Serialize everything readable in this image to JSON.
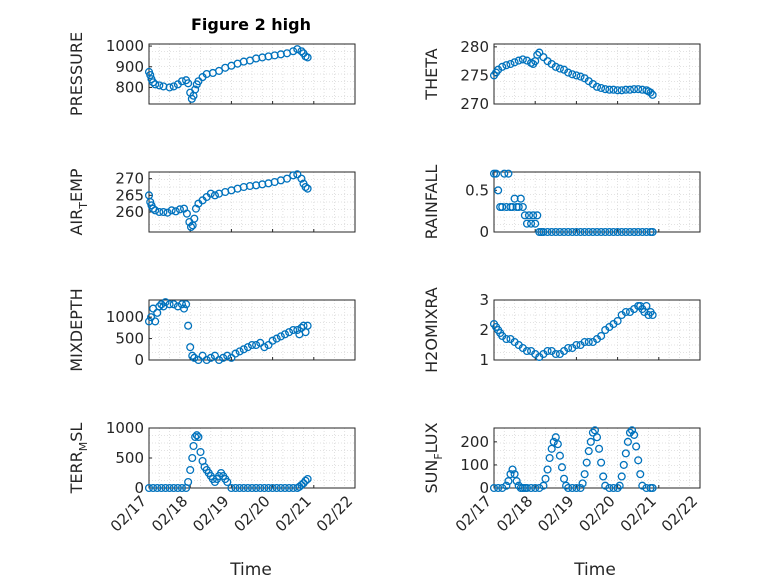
{
  "figure": {
    "title": "Figure 2 high",
    "marker_color": "#0072BD"
  },
  "chart_data": [
    {
      "id": "pressure",
      "type": "scatter",
      "ylabel": "PRESSURE",
      "ylim": [
        720,
        1010
      ],
      "yticks": [
        800,
        900,
        1000
      ],
      "ytick_labels": [
        "800",
        "900",
        "1000"
      ],
      "xlim": [
        0,
        5
      ],
      "xticks": [
        0,
        1,
        2,
        3,
        4,
        5
      ],
      "xtick_labels": [
        "02/17",
        "02/18",
        "02/19",
        "02/20",
        "02/21",
        "02/22"
      ],
      "show_xtick_labels": false,
      "x": [
        0.0,
        0.03,
        0.06,
        0.1,
        0.15,
        0.25,
        0.35,
        0.5,
        0.6,
        0.7,
        0.8,
        0.9,
        0.95,
        1.0,
        1.04,
        1.08,
        1.12,
        1.16,
        1.2,
        1.3,
        1.4,
        1.55,
        1.7,
        1.85,
        2.0,
        2.15,
        2.3,
        2.45,
        2.6,
        2.75,
        2.9,
        3.05,
        3.2,
        3.35,
        3.5,
        3.6,
        3.7,
        3.75,
        3.8,
        3.85
      ],
      "y": [
        875,
        860,
        840,
        825,
        815,
        810,
        805,
        800,
        805,
        815,
        830,
        835,
        820,
        775,
        745,
        760,
        790,
        815,
        830,
        850,
        865,
        870,
        880,
        895,
        905,
        915,
        925,
        930,
        940,
        945,
        950,
        955,
        960,
        965,
        975,
        985,
        975,
        965,
        950,
        945
      ]
    },
    {
      "id": "theta",
      "type": "scatter",
      "ylabel": "THETA",
      "ylim": [
        270,
        280.5
      ],
      "yticks": [
        270,
        275,
        280
      ],
      "ytick_labels": [
        "270",
        "275",
        "280"
      ],
      "xlim": [
        0,
        5
      ],
      "xticks": [
        0,
        1,
        2,
        3,
        4,
        5
      ],
      "xtick_labels": [
        "02/17",
        "02/18",
        "02/19",
        "02/20",
        "02/21",
        "02/22"
      ],
      "show_xtick_labels": false,
      "x": [
        0.0,
        0.05,
        0.1,
        0.2,
        0.3,
        0.4,
        0.5,
        0.6,
        0.7,
        0.8,
        0.9,
        0.95,
        1.0,
        1.05,
        1.1,
        1.2,
        1.3,
        1.4,
        1.5,
        1.6,
        1.7,
        1.8,
        1.9,
        2.0,
        2.1,
        2.2,
        2.3,
        2.4,
        2.5,
        2.6,
        2.7,
        2.8,
        2.9,
        3.0,
        3.1,
        3.2,
        3.3,
        3.4,
        3.5,
        3.6,
        3.7,
        3.75,
        3.8,
        3.85
      ],
      "y": [
        275,
        275.5,
        276,
        276.5,
        276.8,
        277,
        277.3,
        277.6,
        277.8,
        277.6,
        277.2,
        277,
        277.5,
        278.6,
        279,
        278.2,
        277.5,
        277,
        276.5,
        276.2,
        276,
        275.5,
        275.2,
        275,
        274.8,
        274.5,
        274,
        273.5,
        273,
        272.8,
        272.6,
        272.5,
        272.5,
        272.4,
        272.4,
        272.5,
        272.5,
        272.6,
        272.6,
        272.5,
        272.4,
        272.2,
        272,
        271.6
      ]
    },
    {
      "id": "air_temp",
      "type": "scatter",
      "ylabel": "AIR",
      "ylabel_sub": "T",
      "ylabel_rest": "EMP",
      "ylim": [
        254,
        272
      ],
      "yticks": [
        260,
        265,
        270
      ],
      "ytick_labels": [
        "260",
        "265",
        "270"
      ],
      "xlim": [
        0,
        5
      ],
      "xticks": [
        0,
        1,
        2,
        3,
        4,
        5
      ],
      "xtick_labels": [
        "02/17",
        "02/18",
        "02/19",
        "02/20",
        "02/21",
        "02/22"
      ],
      "show_xtick_labels": false,
      "x": [
        0.0,
        0.03,
        0.06,
        0.1,
        0.15,
        0.25,
        0.35,
        0.45,
        0.55,
        0.65,
        0.75,
        0.85,
        0.92,
        0.98,
        1.02,
        1.06,
        1.1,
        1.14,
        1.2,
        1.3,
        1.4,
        1.5,
        1.6,
        1.7,
        1.85,
        2.0,
        2.15,
        2.3,
        2.45,
        2.6,
        2.75,
        2.9,
        3.05,
        3.2,
        3.35,
        3.5,
        3.6,
        3.7,
        3.75,
        3.8,
        3.85
      ],
      "y": [
        265,
        263,
        262,
        261,
        260.5,
        260,
        260,
        259.8,
        260.5,
        260.2,
        260.8,
        261,
        259.5,
        257,
        255.5,
        256,
        258,
        261,
        262.5,
        263.5,
        264.5,
        265.5,
        265,
        265.5,
        266,
        266.5,
        267,
        267.5,
        267.8,
        268,
        268.3,
        268.6,
        269,
        269.5,
        270,
        271,
        271.3,
        270,
        268.5,
        267.5,
        267
      ]
    },
    {
      "id": "rainfall",
      "type": "scatter",
      "ylabel": "RAINFALL",
      "ylim": [
        0,
        0.72
      ],
      "yticks": [
        0,
        0.5
      ],
      "ytick_labels": [
        "0",
        "0.5"
      ],
      "xlim": [
        0,
        5
      ],
      "xticks": [
        0,
        1,
        2,
        3,
        4,
        5
      ],
      "xtick_labels": [
        "02/17",
        "02/18",
        "02/19",
        "02/20",
        "02/21",
        "02/22"
      ],
      "show_xtick_labels": false,
      "x": [
        0.0,
        0.05,
        0.1,
        0.15,
        0.2,
        0.25,
        0.3,
        0.35,
        0.4,
        0.45,
        0.5,
        0.55,
        0.6,
        0.65,
        0.7,
        0.75,
        0.8,
        0.85,
        0.9,
        0.95,
        1.0,
        1.05,
        1.1,
        1.15,
        1.2,
        1.3,
        1.4,
        1.5,
        1.6,
        1.7,
        1.8,
        1.9,
        2.0,
        2.1,
        2.2,
        2.3,
        2.4,
        2.5,
        2.6,
        2.7,
        2.8,
        2.9,
        3.0,
        3.1,
        3.2,
        3.3,
        3.4,
        3.5,
        3.6,
        3.7,
        3.8,
        3.85
      ],
      "y": [
        0.7,
        0.7,
        0.5,
        0.3,
        0.3,
        0.7,
        0.3,
        0.7,
        0.3,
        0.3,
        0.4,
        0.3,
        0.3,
        0.4,
        0.3,
        0.2,
        0.1,
        0.2,
        0.1,
        0.2,
        0.1,
        0.2,
        0.0,
        0.0,
        0.0,
        0.0,
        0.0,
        0.0,
        0.0,
        0.0,
        0.0,
        0.0,
        0.0,
        0.0,
        0.0,
        0.0,
        0.0,
        0.0,
        0.0,
        0.0,
        0.0,
        0.0,
        0.0,
        0.0,
        0.0,
        0.0,
        0.0,
        0.0,
        0.0,
        0.0,
        0.0,
        0.0
      ]
    },
    {
      "id": "mixdepth",
      "type": "scatter",
      "ylabel": "MIXDEPTH",
      "ylim": [
        0,
        1400
      ],
      "yticks": [
        0,
        500,
        1000
      ],
      "ytick_labels": [
        "0",
        "500",
        "1000"
      ],
      "xlim": [
        0,
        5
      ],
      "xticks": [
        0,
        1,
        2,
        3,
        4,
        5
      ],
      "xtick_labels": [
        "02/17",
        "02/18",
        "02/19",
        "02/20",
        "02/21",
        "02/22"
      ],
      "show_xtick_labels": false,
      "x": [
        0.0,
        0.05,
        0.1,
        0.15,
        0.2,
        0.25,
        0.3,
        0.35,
        0.4,
        0.5,
        0.6,
        0.7,
        0.8,
        0.85,
        0.9,
        0.95,
        1.0,
        1.05,
        1.1,
        1.2,
        1.3,
        1.4,
        1.5,
        1.6,
        1.7,
        1.8,
        1.9,
        2.0,
        2.1,
        2.2,
        2.3,
        2.4,
        2.5,
        2.6,
        2.7,
        2.8,
        2.9,
        3.0,
        3.1,
        3.2,
        3.3,
        3.4,
        3.5,
        3.6,
        3.65,
        3.7,
        3.75,
        3.8,
        3.85
      ],
      "y": [
        900,
        1000,
        1200,
        900,
        1100,
        1250,
        1300,
        1250,
        1350,
        1300,
        1300,
        1250,
        1300,
        1200,
        1300,
        800,
        300,
        100,
        50,
        0,
        100,
        0,
        50,
        100,
        0,
        50,
        100,
        50,
        150,
        200,
        250,
        300,
        350,
        350,
        400,
        300,
        350,
        450,
        500,
        550,
        600,
        650,
        700,
        700,
        600,
        750,
        800,
        650,
        800
      ]
    },
    {
      "id": "h2omixra",
      "type": "scatter",
      "ylabel": "H2OMIXRA",
      "ylim": [
        1,
        3
      ],
      "yticks": [
        1,
        2,
        3
      ],
      "ytick_labels": [
        "1",
        "2",
        "3"
      ],
      "xlim": [
        0,
        5
      ],
      "xticks": [
        0,
        1,
        2,
        3,
        4,
        5
      ],
      "xtick_labels": [
        "02/17",
        "02/18",
        "02/19",
        "02/20",
        "02/21",
        "02/22"
      ],
      "show_xtick_labels": false,
      "x": [
        0.0,
        0.05,
        0.1,
        0.15,
        0.2,
        0.3,
        0.4,
        0.5,
        0.6,
        0.7,
        0.8,
        0.9,
        1.0,
        1.1,
        1.2,
        1.3,
        1.4,
        1.5,
        1.6,
        1.7,
        1.8,
        1.9,
        2.0,
        2.1,
        2.2,
        2.3,
        2.4,
        2.5,
        2.6,
        2.7,
        2.8,
        2.9,
        3.0,
        3.1,
        3.2,
        3.3,
        3.4,
        3.5,
        3.55,
        3.6,
        3.65,
        3.7,
        3.75,
        3.8,
        3.85
      ],
      "y": [
        2.2,
        2.1,
        2.0,
        1.9,
        1.8,
        1.7,
        1.7,
        1.6,
        1.5,
        1.4,
        1.3,
        1.3,
        1.2,
        1.1,
        1.2,
        1.3,
        1.3,
        1.2,
        1.2,
        1.3,
        1.4,
        1.4,
        1.5,
        1.5,
        1.6,
        1.6,
        1.6,
        1.7,
        1.8,
        2.0,
        2.1,
        2.2,
        2.3,
        2.5,
        2.6,
        2.6,
        2.7,
        2.8,
        2.8,
        2.7,
        2.6,
        2.8,
        2.5,
        2.6,
        2.5
      ]
    },
    {
      "id": "terr_msl",
      "type": "scatter",
      "ylabel": "TERR",
      "ylabel_sub": "M",
      "ylabel_rest": "SL",
      "ylim": [
        0,
        1000
      ],
      "yticks": [
        0,
        500,
        1000
      ],
      "ytick_labels": [
        "0",
        "500",
        "1000"
      ],
      "xlim": [
        0,
        5
      ],
      "xticks": [
        0,
        1,
        2,
        3,
        4,
        5
      ],
      "xtick_labels": [
        "02/17",
        "02/18",
        "02/19",
        "02/20",
        "02/21",
        "02/22"
      ],
      "show_xtick_labels": true,
      "x": [
        0.0,
        0.1,
        0.2,
        0.3,
        0.4,
        0.5,
        0.6,
        0.7,
        0.8,
        0.9,
        0.95,
        1.0,
        1.05,
        1.08,
        1.12,
        1.16,
        1.2,
        1.25,
        1.3,
        1.35,
        1.4,
        1.45,
        1.5,
        1.55,
        1.6,
        1.65,
        1.7,
        1.75,
        1.8,
        1.85,
        1.9,
        2.0,
        2.1,
        2.2,
        2.3,
        2.4,
        2.5,
        2.6,
        2.7,
        2.8,
        2.9,
        3.0,
        3.1,
        3.2,
        3.3,
        3.4,
        3.5,
        3.6,
        3.65,
        3.7,
        3.75,
        3.8,
        3.85
      ],
      "y": [
        0,
        0,
        0,
        0,
        0,
        0,
        0,
        0,
        0,
        0,
        100,
        300,
        500,
        700,
        850,
        880,
        850,
        600,
        450,
        350,
        300,
        250,
        200,
        150,
        100,
        150,
        200,
        250,
        200,
        150,
        100,
        0,
        0,
        0,
        0,
        0,
        0,
        0,
        0,
        0,
        0,
        0,
        0,
        0,
        0,
        0,
        0,
        0,
        20,
        50,
        80,
        120,
        150
      ]
    },
    {
      "id": "sun_flux",
      "type": "scatter",
      "ylabel": "SUN",
      "ylabel_sub": "F",
      "ylabel_rest": "LUX",
      "ylim": [
        0,
        260
      ],
      "yticks": [
        0,
        100,
        200
      ],
      "ytick_labels": [
        "0",
        "100",
        "200"
      ],
      "xlim": [
        0,
        5
      ],
      "xticks": [
        0,
        1,
        2,
        3,
        4,
        5
      ],
      "xtick_labels": [
        "02/17",
        "02/18",
        "02/19",
        "02/20",
        "02/21",
        "02/22"
      ],
      "show_xtick_labels": true,
      "x": [
        0.0,
        0.1,
        0.2,
        0.3,
        0.35,
        0.4,
        0.45,
        0.5,
        0.55,
        0.6,
        0.65,
        0.7,
        0.75,
        0.8,
        0.9,
        1.0,
        1.1,
        1.2,
        1.25,
        1.3,
        1.35,
        1.4,
        1.45,
        1.5,
        1.55,
        1.6,
        1.65,
        1.7,
        1.75,
        1.8,
        1.9,
        2.0,
        2.1,
        2.15,
        2.2,
        2.25,
        2.3,
        2.35,
        2.4,
        2.45,
        2.5,
        2.55,
        2.6,
        2.65,
        2.7,
        2.8,
        2.9,
        3.0,
        3.05,
        3.1,
        3.15,
        3.2,
        3.25,
        3.3,
        3.35,
        3.4,
        3.45,
        3.5,
        3.55,
        3.6,
        3.7,
        3.8,
        3.85
      ],
      "y": [
        0,
        0,
        0,
        10,
        30,
        60,
        80,
        60,
        30,
        10,
        0,
        0,
        0,
        0,
        0,
        0,
        0,
        10,
        40,
        80,
        130,
        170,
        200,
        220,
        190,
        140,
        90,
        40,
        10,
        0,
        0,
        0,
        0,
        20,
        60,
        110,
        160,
        200,
        240,
        250,
        220,
        170,
        110,
        50,
        10,
        0,
        0,
        0,
        10,
        50,
        100,
        150,
        200,
        240,
        250,
        230,
        180,
        120,
        60,
        10,
        0,
        0,
        0
      ]
    }
  ],
  "xlabels": [
    "Time",
    "Time"
  ]
}
